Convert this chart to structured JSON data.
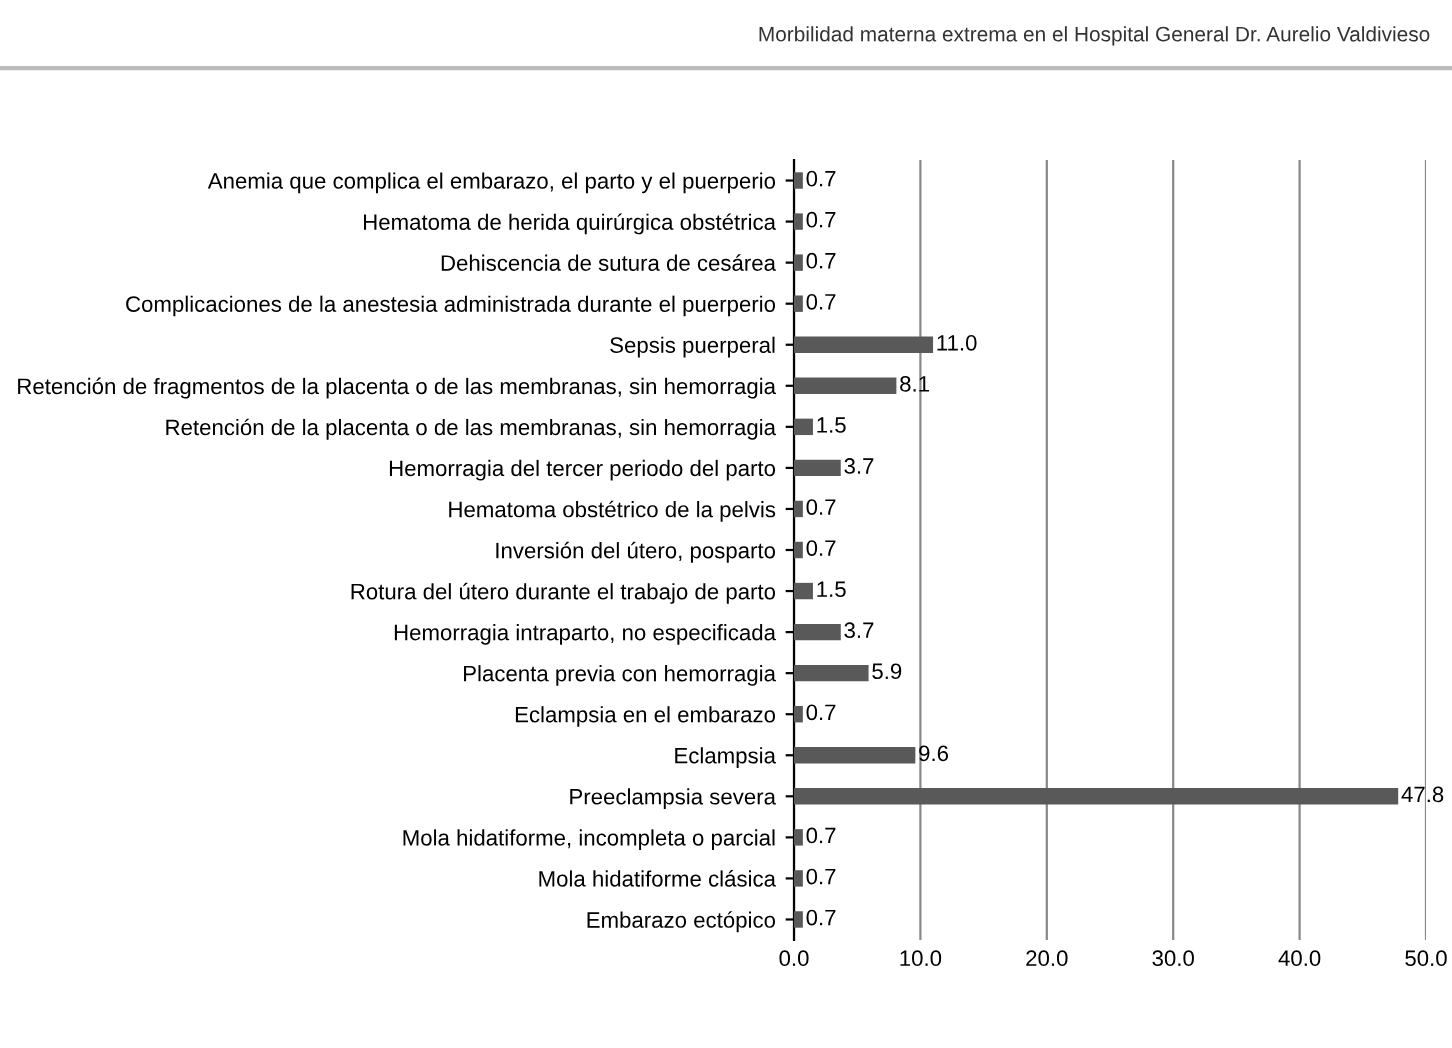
{
  "chart_data": {
    "type": "bar",
    "orientation": "horizontal",
    "title": "Morbilidad materna extrema en el Hospital General Dr. Aurelio Valdivieso",
    "categories": [
      "Anemia que complica el embarazo, el parto y el puerperio",
      "Hematoma de herida quirúrgica obstétrica",
      "Dehiscencia de sutura de cesárea",
      "Complicaciones de la anestesia administrada durante el puerperio",
      "Sepsis puerperal",
      "Retención de fragmentos de la placenta o de las membranas, sin hemorragia",
      "Retención de la placenta o de las membranas, sin hemorragia",
      "Hemorragia del tercer periodo del parto",
      "Hematoma obstétrico de la pelvis",
      "Inversión del útero, posparto",
      "Rotura del útero durante el trabajo de parto",
      "Hemorragia intraparto, no especificada",
      "Placenta previa con hemorragia",
      "Eclampsia en el embarazo",
      "Eclampsia",
      "Preeclampsia severa",
      "Mola hidatiforme, incompleta o parcial",
      "Mola hidatiforme clásica",
      "Embarazo ectópico"
    ],
    "values": [
      0.7,
      0.7,
      0.7,
      0.7,
      11.0,
      8.1,
      1.5,
      3.7,
      0.7,
      0.7,
      1.5,
      3.7,
      5.9,
      0.7,
      9.6,
      47.8,
      0.7,
      0.7,
      0.7
    ],
    "value_labels": [
      "0.7",
      "0.7",
      "0.7",
      "0.7",
      "11.0",
      "8.1",
      "1.5",
      "3.7",
      "0.7",
      "0.7",
      "1.5",
      "3.7",
      "5.9",
      "0.7",
      "9.6",
      "47.8",
      "0.7",
      "0.7",
      "0.7"
    ],
    "color": "#595959",
    "xlim": [
      0,
      50
    ],
    "xticks": [
      {
        "value": 0,
        "label": "0.0"
      },
      {
        "value": 10,
        "label": "10.0"
      },
      {
        "value": 20,
        "label": "20.0"
      },
      {
        "value": 30,
        "label": "30.0"
      },
      {
        "value": 40,
        "label": "40.0"
      },
      {
        "value": 50,
        "label": "50.0"
      }
    ],
    "grid": "x"
  }
}
